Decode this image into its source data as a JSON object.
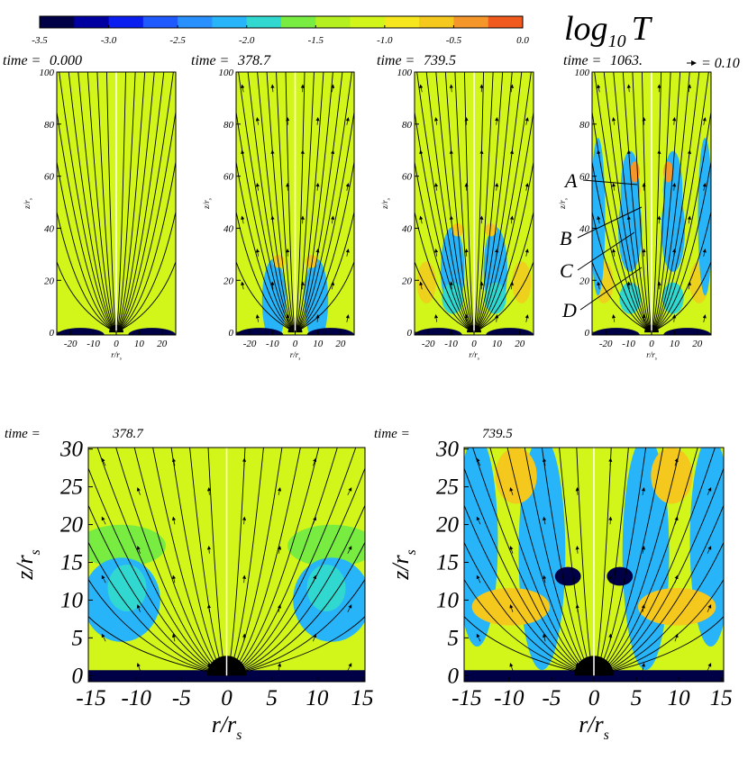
{
  "colorbar": {
    "label": "log",
    "label_subscript": "10",
    "label_var": "T",
    "lim": [
      -3.5,
      0
    ],
    "ticks": [
      -3.5,
      {
        "value": -3,
        "label": "-3.0"
      },
      -2.5,
      {
        "value": -2,
        "label": "-2.0"
      },
      -1.5,
      {
        "value": -1,
        "label": "-1.0"
      },
      -0.5,
      {
        "value": 0,
        "label": "0.0"
      }
    ],
    "colors": [
      "#000046",
      "#0000a0",
      "#0a1ef0",
      "#1e5aff",
      "#2890ff",
      "#28b4f8",
      "#30d8d0",
      "#78ec40",
      "#b4f020",
      "#d2f51a",
      "#f5e61e",
      "#f5c81e",
      "#f5962a",
      "#f05a1e"
    ]
  },
  "chart_data": [
    {
      "type": "heatmap",
      "time_prefix": "time =",
      "time": {
        "value": 0,
        "label": "0.000"
      },
      "xlabel": "r/r",
      "xlabel_subscript": "s",
      "ylabel": "z/r",
      "ylabel_subscript": "s",
      "xlim": [
        -26,
        26
      ],
      "ylim": [
        -1,
        100
      ],
      "xticks": [
        -20,
        -10,
        0,
        10,
        20
      ],
      "yticks": [
        0,
        20,
        40,
        60,
        80,
        100
      ]
    },
    {
      "type": "heatmap",
      "time_prefix": "time =",
      "time": 378.7,
      "xlabel": "r/r",
      "xlabel_subscript": "s",
      "ylabel": "z/r",
      "ylabel_subscript": "s",
      "xlim": [
        -26,
        26
      ],
      "ylim": [
        -1,
        100
      ],
      "xticks": [
        -20,
        -10,
        0,
        10,
        20
      ],
      "yticks": [
        0,
        20,
        40,
        60,
        80,
        100
      ]
    },
    {
      "type": "heatmap",
      "time_prefix": "time =",
      "time": 739.5,
      "xlabel": "r/r",
      "xlabel_subscript": "s",
      "ylabel": "z/r",
      "ylabel_subscript": "s",
      "xlim": [
        -26,
        26
      ],
      "ylim": [
        -1,
        100
      ],
      "xticks": [
        -20,
        -10,
        0,
        10,
        20
      ],
      "yticks": [
        0,
        20,
        40,
        60,
        80,
        100
      ]
    },
    {
      "type": "heatmap",
      "time_prefix": "time =",
      "time": {
        "value": 1063,
        "label": "1063."
      },
      "xlabel": "r/r",
      "xlabel_subscript": "s",
      "ylabel": "z/r",
      "ylabel_subscript": "s",
      "xlim": [
        -26,
        26
      ],
      "ylim": [
        -1,
        100
      ],
      "xticks": [
        -20,
        -10,
        0,
        10,
        20
      ],
      "yticks": [
        0,
        20,
        40,
        60,
        80,
        100
      ]
    },
    {
      "type": "heatmap",
      "time_prefix": "time =",
      "time": 378.7,
      "xlabel": "r/r",
      "xlabel_subscript": "s",
      "ylabel": "z/r",
      "ylabel_subscript": "s",
      "xlim": [
        -15.3,
        15.3
      ],
      "ylim": [
        -0.8,
        30.2
      ],
      "xticks": [
        -15,
        -10,
        -5,
        0,
        5,
        10,
        15
      ],
      "yticks": [
        0,
        5,
        10,
        15,
        20,
        25,
        30
      ]
    },
    {
      "type": "heatmap",
      "time_prefix": "time =",
      "time": 739.5,
      "xlabel": "r/r",
      "xlabel_subscript": "s",
      "ylabel": "z/r",
      "ylabel_subscript": "s",
      "xlim": [
        -15.3,
        15.3
      ],
      "ylim": [
        -0.8,
        30.2
      ],
      "xticks": [
        -15,
        -10,
        -5,
        0,
        5,
        10,
        15
      ],
      "yticks": [
        0,
        5,
        10,
        15,
        20,
        25,
        30
      ]
    }
  ],
  "vector_key": {
    "value": 0.1,
    "label": "= 0.10"
  },
  "annotations": [
    "A",
    "B",
    "C",
    "D"
  ]
}
